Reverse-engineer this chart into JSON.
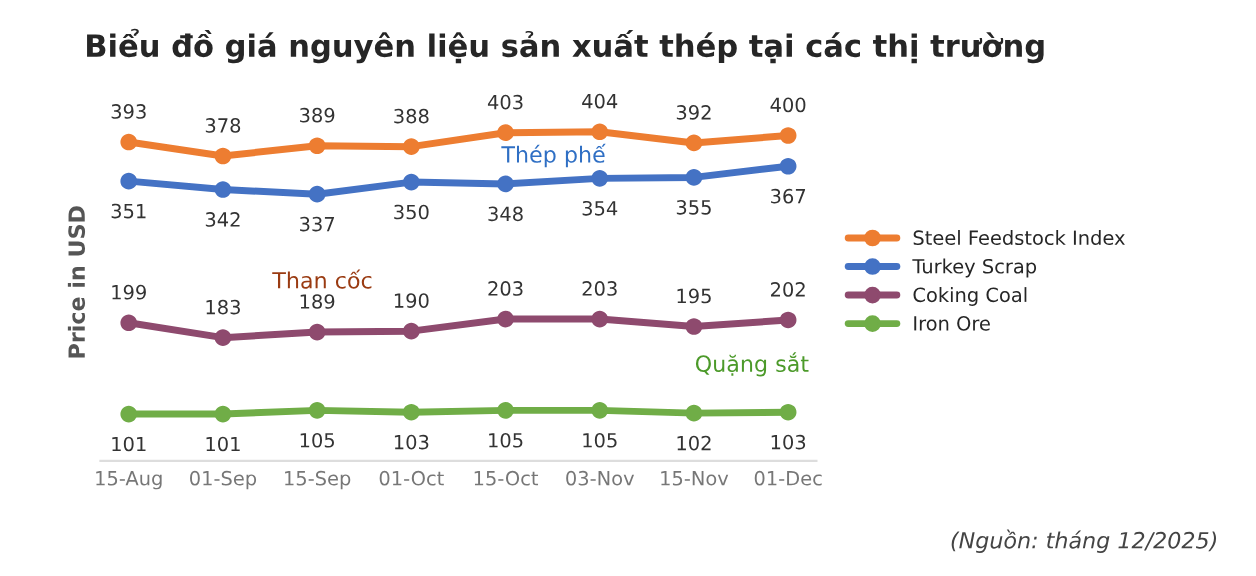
{
  "chart_data": {
    "type": "line",
    "title": "Biểu đồ giá nguyên liệu sản xuất thép tại các thị trường",
    "ylabel": "Price in USD",
    "categories": [
      "15-Aug",
      "01-Sep",
      "15-Sep",
      "01-Oct",
      "15-Oct",
      "03-Nov",
      "15-Nov",
      "01-Dec"
    ],
    "series": [
      {
        "name": "Steel Feedstock Index",
        "color": "#ed7d31",
        "values": [
          393,
          378,
          389,
          388,
          403,
          404,
          392,
          400
        ]
      },
      {
        "name": "Turkey Scrap",
        "color": "#4472c4",
        "values": [
          351,
          342,
          337,
          350,
          348,
          354,
          355,
          367
        ]
      },
      {
        "name": "Coking Coal",
        "color": "#8e4a6e",
        "values": [
          199,
          183,
          189,
          190,
          203,
          203,
          195,
          202
        ]
      },
      {
        "name": "Iron Ore",
        "color": "#70ad47",
        "values": [
          101,
          101,
          105,
          103,
          105,
          105,
          102,
          103
        ]
      }
    ],
    "data_labels": true,
    "marker": "circle",
    "line_style": "solid",
    "legend": "right",
    "grid": false,
    "annotations": [
      "Thép phế",
      "Than cốc",
      "Quặng sắt",
      "(Nguồn: tháng 12/2025)"
    ]
  }
}
